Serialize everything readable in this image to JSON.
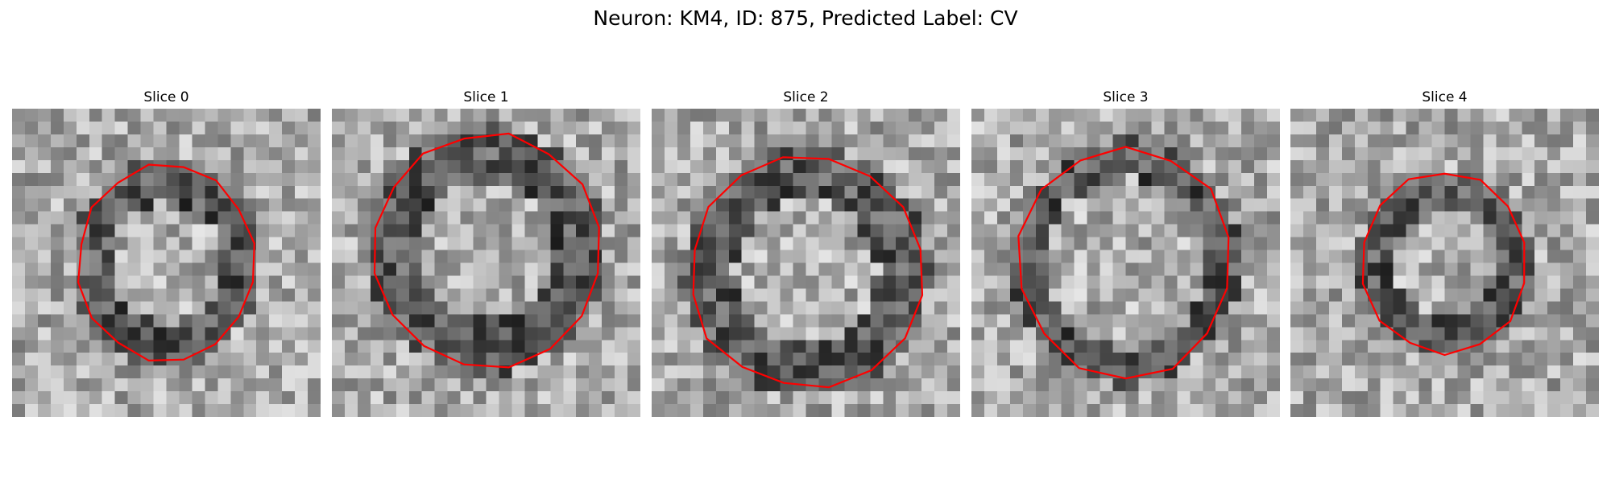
{
  "figure": {
    "title": "Neuron: KM4, ID: 875, Predicted Label: CV"
  },
  "colors": {
    "contour": "#ff0000",
    "background": "#ffffff"
  },
  "panels": [
    {
      "title": "Slice 0"
    },
    {
      "title": "Slice 1"
    },
    {
      "title": "Slice 2"
    },
    {
      "title": "Slice 3"
    },
    {
      "title": "Slice 4"
    }
  ]
}
